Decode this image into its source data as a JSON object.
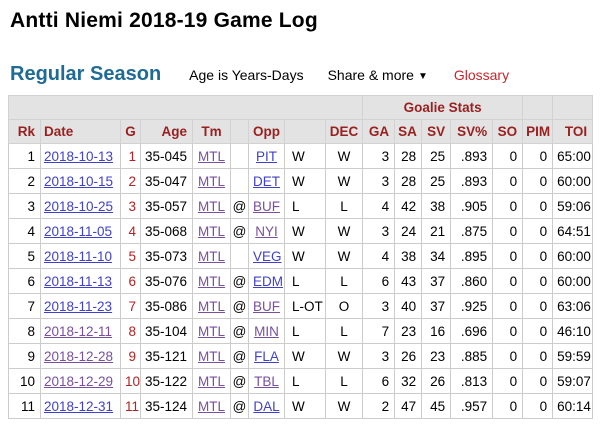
{
  "page": {
    "title": "Antti Niemi 2018-19 Game Log"
  },
  "toolbar": {
    "section_title": "Regular Season",
    "age_note": "Age is Years-Days",
    "share_label": "Share & more",
    "share_caret": "▼",
    "glossary_label": "Glossary"
  },
  "colors": {
    "section_title": "#1e6b96",
    "glossary": "#c9242b",
    "header_text": "#9a1f1f",
    "g_number": "#b22222",
    "link_new": "#4040cc",
    "link_visited": "#7a4fa0",
    "header_bg": "#e3e3e3"
  },
  "table": {
    "group_label": "Goalie Stats",
    "columns": [
      {
        "key": "rk",
        "label": "Rk"
      },
      {
        "key": "date",
        "label": "Date"
      },
      {
        "key": "g",
        "label": "G"
      },
      {
        "key": "age",
        "label": "Age"
      },
      {
        "key": "tm",
        "label": "Tm"
      },
      {
        "key": "at",
        "label": ""
      },
      {
        "key": "opp",
        "label": "Opp"
      },
      {
        "key": "res",
        "label": ""
      },
      {
        "key": "dec",
        "label": "DEC"
      },
      {
        "key": "ga",
        "label": "GA"
      },
      {
        "key": "sa",
        "label": "SA"
      },
      {
        "key": "sv",
        "label": "SV"
      },
      {
        "key": "svpct",
        "label": "SV%"
      },
      {
        "key": "so",
        "label": "SO"
      },
      {
        "key": "pim",
        "label": "PIM"
      },
      {
        "key": "toi",
        "label": "TOI"
      }
    ],
    "rows": [
      {
        "rk": "1",
        "date": "2018-10-13",
        "date_visited": false,
        "g": "1",
        "age": "35-045",
        "tm": "MTL",
        "at": "",
        "opp": "PIT",
        "opp_visited": false,
        "res": "W",
        "dec": "W",
        "ga": "3",
        "sa": "28",
        "sv": "25",
        "svpct": ".893",
        "so": "0",
        "pim": "0",
        "toi": "65:00"
      },
      {
        "rk": "2",
        "date": "2018-10-15",
        "date_visited": false,
        "g": "2",
        "age": "35-047",
        "tm": "MTL",
        "at": "",
        "opp": "DET",
        "opp_visited": false,
        "res": "W",
        "dec": "W",
        "ga": "3",
        "sa": "28",
        "sv": "25",
        "svpct": ".893",
        "so": "0",
        "pim": "0",
        "toi": "60:00"
      },
      {
        "rk": "3",
        "date": "2018-10-25",
        "date_visited": false,
        "g": "3",
        "age": "35-057",
        "tm": "MTL",
        "at": "@",
        "opp": "BUF",
        "opp_visited": true,
        "res": "L",
        "dec": "L",
        "ga": "4",
        "sa": "42",
        "sv": "38",
        "svpct": ".905",
        "so": "0",
        "pim": "0",
        "toi": "59:06"
      },
      {
        "rk": "4",
        "date": "2018-11-05",
        "date_visited": false,
        "g": "4",
        "age": "35-068",
        "tm": "MTL",
        "at": "@",
        "opp": "NYI",
        "opp_visited": true,
        "res": "W",
        "dec": "W",
        "ga": "3",
        "sa": "24",
        "sv": "21",
        "svpct": ".875",
        "so": "0",
        "pim": "0",
        "toi": "64:51"
      },
      {
        "rk": "5",
        "date": "2018-11-10",
        "date_visited": false,
        "g": "5",
        "age": "35-073",
        "tm": "MTL",
        "at": "",
        "opp": "VEG",
        "opp_visited": false,
        "res": "W",
        "dec": "W",
        "ga": "4",
        "sa": "38",
        "sv": "34",
        "svpct": ".895",
        "so": "0",
        "pim": "0",
        "toi": "60:00"
      },
      {
        "rk": "6",
        "date": "2018-11-13",
        "date_visited": false,
        "g": "6",
        "age": "35-076",
        "tm": "MTL",
        "at": "@",
        "opp": "EDM",
        "opp_visited": false,
        "res": "L",
        "dec": "L",
        "ga": "6",
        "sa": "43",
        "sv": "37",
        "svpct": ".860",
        "so": "0",
        "pim": "0",
        "toi": "60:00"
      },
      {
        "rk": "7",
        "date": "2018-11-23",
        "date_visited": false,
        "g": "7",
        "age": "35-086",
        "tm": "MTL",
        "at": "@",
        "opp": "BUF",
        "opp_visited": true,
        "res": "L-OT",
        "dec": "O",
        "ga": "3",
        "sa": "40",
        "sv": "37",
        "svpct": ".925",
        "so": "0",
        "pim": "0",
        "toi": "63:06"
      },
      {
        "rk": "8",
        "date": "2018-12-11",
        "date_visited": true,
        "g": "8",
        "age": "35-104",
        "tm": "MTL",
        "at": "@",
        "opp": "MIN",
        "opp_visited": true,
        "res": "L",
        "dec": "L",
        "ga": "7",
        "sa": "23",
        "sv": "16",
        "svpct": ".696",
        "so": "0",
        "pim": "0",
        "toi": "46:10"
      },
      {
        "rk": "9",
        "date": "2018-12-28",
        "date_visited": true,
        "g": "9",
        "age": "35-121",
        "tm": "MTL",
        "at": "@",
        "opp": "FLA",
        "opp_visited": false,
        "res": "W",
        "dec": "W",
        "ga": "3",
        "sa": "26",
        "sv": "23",
        "svpct": ".885",
        "so": "0",
        "pim": "0",
        "toi": "59:59"
      },
      {
        "rk": "10",
        "date": "2018-12-29",
        "date_visited": true,
        "g": "10",
        "age": "35-122",
        "tm": "MTL",
        "at": "@",
        "opp": "TBL",
        "opp_visited": true,
        "res": "L",
        "dec": "L",
        "ga": "6",
        "sa": "32",
        "sv": "26",
        "svpct": ".813",
        "so": "0",
        "pim": "0",
        "toi": "59:07"
      },
      {
        "rk": "11",
        "date": "2018-12-31",
        "date_visited": false,
        "g": "11",
        "age": "35-124",
        "tm": "MTL",
        "at": "@",
        "opp": "DAL",
        "opp_visited": false,
        "res": "W",
        "dec": "W",
        "ga": "2",
        "sa": "47",
        "sv": "45",
        "svpct": ".957",
        "so": "0",
        "pim": "0",
        "toi": "60:14"
      }
    ]
  }
}
